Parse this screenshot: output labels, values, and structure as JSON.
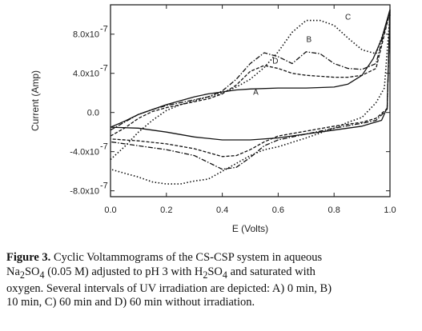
{
  "chart_data": {
    "type": "line",
    "xlabel": "E (Volts)",
    "ylabel": "Current (Amp)",
    "xlim": [
      0.0,
      1.0
    ],
    "ylim": [
      -8.6e-07,
      1.1e-06
    ],
    "x_ticks": [
      0.0,
      0.2,
      0.4,
      0.6,
      0.8,
      1.0
    ],
    "x_tick_labels": [
      "0.0",
      "0.2",
      "0.4",
      "0.6",
      "0.8",
      "1.0"
    ],
    "y_ticks": [
      8e-07,
      4e-07,
      0.0,
      -4e-07,
      -8e-07
    ],
    "y_tick_mantissa": [
      "8.0x10",
      "4.0x10",
      "0.0",
      "-4.0x10",
      "-8.0x10"
    ],
    "y_tick_exponent": [
      "-7",
      "-7",
      "",
      "-7",
      "-7"
    ],
    "grid": false,
    "series": [
      {
        "name": "A",
        "style": "solid",
        "forward": [
          [
            0.0,
            -1.5e-07
          ],
          [
            0.05,
            -9e-08
          ],
          [
            0.1,
            -2e-08
          ],
          [
            0.15,
            3e-08
          ],
          [
            0.2,
            8e-08
          ],
          [
            0.25,
            1.2e-07
          ],
          [
            0.3,
            1.6e-07
          ],
          [
            0.35,
            1.9e-07
          ],
          [
            0.4,
            2.1e-07
          ],
          [
            0.45,
            2.3e-07
          ],
          [
            0.5,
            2.4e-07
          ],
          [
            0.6,
            2.5e-07
          ],
          [
            0.7,
            2.5e-07
          ],
          [
            0.8,
            2.6e-07
          ],
          [
            0.85,
            2.9e-07
          ],
          [
            0.9,
            3.8e-07
          ],
          [
            0.94,
            5.5e-07
          ],
          [
            0.97,
            7.5e-07
          ],
          [
            1.0,
            1.05e-06
          ]
        ],
        "reverse": [
          [
            1.0,
            1.05e-06
          ],
          [
            0.99,
            5e-08
          ],
          [
            0.97,
            -8e-08
          ],
          [
            0.9,
            -1.4e-07
          ],
          [
            0.8,
            -1.8e-07
          ],
          [
            0.7,
            -2.2e-07
          ],
          [
            0.6,
            -2.6e-07
          ],
          [
            0.5,
            -2.8e-07
          ],
          [
            0.4,
            -2.8e-07
          ],
          [
            0.3,
            -2.5e-07
          ],
          [
            0.2,
            -2e-07
          ],
          [
            0.1,
            -1.6e-07
          ],
          [
            0.0,
            -1.5e-07
          ]
        ]
      },
      {
        "name": "B",
        "style": "dashdot",
        "forward": [
          [
            0.0,
            -1.8e-07
          ],
          [
            0.05,
            -1e-07
          ],
          [
            0.1,
            -2e-08
          ],
          [
            0.15,
            3e-08
          ],
          [
            0.2,
            7e-08
          ],
          [
            0.25,
            1e-07
          ],
          [
            0.3,
            1.3e-07
          ],
          [
            0.35,
            1.6e-07
          ],
          [
            0.4,
            2.2e-07
          ],
          [
            0.45,
            3.4e-07
          ],
          [
            0.5,
            5e-07
          ],
          [
            0.55,
            6.1e-07
          ],
          [
            0.6,
            5.7e-07
          ],
          [
            0.65,
            5e-07
          ],
          [
            0.7,
            6.2e-07
          ],
          [
            0.75,
            6e-07
          ],
          [
            0.8,
            5e-07
          ],
          [
            0.85,
            4.5e-07
          ],
          [
            0.9,
            4.4e-07
          ],
          [
            0.95,
            5e-07
          ],
          [
            1.0,
            1.05e-06
          ]
        ],
        "reverse": [
          [
            1.0,
            1.05e-06
          ],
          [
            0.99,
            3e-08
          ],
          [
            0.95,
            -8e-08
          ],
          [
            0.9,
            -1.1e-07
          ],
          [
            0.8,
            -1.6e-07
          ],
          [
            0.7,
            -2.2e-07
          ],
          [
            0.6,
            -2.8e-07
          ],
          [
            0.55,
            -3.4e-07
          ],
          [
            0.5,
            -4.6e-07
          ],
          [
            0.45,
            -5.6e-07
          ],
          [
            0.4,
            -5.8e-07
          ],
          [
            0.35,
            -5.1e-07
          ],
          [
            0.3,
            -4.4e-07
          ],
          [
            0.2,
            -3.8e-07
          ],
          [
            0.1,
            -3.4e-07
          ],
          [
            0.0,
            -3e-07
          ]
        ]
      },
      {
        "name": "C",
        "style": "dotted",
        "forward": [
          [
            0.0,
            -4.8e-07
          ],
          [
            0.05,
            -3.5e-07
          ],
          [
            0.1,
            -2e-07
          ],
          [
            0.15,
            -8e-08
          ],
          [
            0.2,
            2e-08
          ],
          [
            0.25,
            8e-08
          ],
          [
            0.3,
            1.2e-07
          ],
          [
            0.35,
            1.6e-07
          ],
          [
            0.4,
            2e-07
          ],
          [
            0.45,
            2.6e-07
          ],
          [
            0.5,
            3.4e-07
          ],
          [
            0.55,
            4.6e-07
          ],
          [
            0.6,
            6.2e-07
          ],
          [
            0.65,
            8.2e-07
          ],
          [
            0.7,
            9.4e-07
          ],
          [
            0.75,
            9.4e-07
          ],
          [
            0.8,
            8.9e-07
          ],
          [
            0.85,
            7.6e-07
          ],
          [
            0.9,
            6.4e-07
          ],
          [
            0.95,
            6e-07
          ],
          [
            1.0,
            1e-06
          ]
        ],
        "reverse": [
          [
            1.0,
            1e-06
          ],
          [
            0.98,
            2.5e-07
          ],
          [
            0.95,
            1e-07
          ],
          [
            0.9,
            -5e-08
          ],
          [
            0.85,
            -1e-07
          ],
          [
            0.8,
            -1.6e-07
          ],
          [
            0.7,
            -2.6e-07
          ],
          [
            0.6,
            -3.5e-07
          ],
          [
            0.55,
            -3.8e-07
          ],
          [
            0.5,
            -4.4e-07
          ],
          [
            0.45,
            -5.2e-07
          ],
          [
            0.4,
            -6e-07
          ],
          [
            0.35,
            -6.8e-07
          ],
          [
            0.3,
            -7e-07
          ],
          [
            0.25,
            -7.3e-07
          ],
          [
            0.2,
            -7.3e-07
          ],
          [
            0.15,
            -7.1e-07
          ],
          [
            0.1,
            -6.6e-07
          ],
          [
            0.05,
            -6.2e-07
          ],
          [
            0.0,
            -5.8e-07
          ]
        ]
      },
      {
        "name": "D",
        "style": "dashed",
        "forward": [
          [
            0.0,
            -2.4e-07
          ],
          [
            0.05,
            -1.6e-07
          ],
          [
            0.1,
            -6e-08
          ],
          [
            0.15,
            1e-08
          ],
          [
            0.2,
            5e-08
          ],
          [
            0.25,
            8e-08
          ],
          [
            0.3,
            1.1e-07
          ],
          [
            0.35,
            1.4e-07
          ],
          [
            0.4,
            1.9e-07
          ],
          [
            0.45,
            2.8e-07
          ],
          [
            0.5,
            4.2e-07
          ],
          [
            0.55,
            4.8e-07
          ],
          [
            0.6,
            4.5e-07
          ],
          [
            0.65,
            4e-07
          ],
          [
            0.7,
            3.8e-07
          ],
          [
            0.75,
            3.7e-07
          ],
          [
            0.8,
            3.6e-07
          ],
          [
            0.85,
            3.6e-07
          ],
          [
            0.9,
            3.8e-07
          ],
          [
            0.95,
            4.5e-07
          ],
          [
            1.0,
            1.03e-06
          ]
        ],
        "reverse": [
          [
            1.0,
            1.03e-06
          ],
          [
            0.99,
            4e-08
          ],
          [
            0.95,
            -6e-08
          ],
          [
            0.9,
            -1e-07
          ],
          [
            0.8,
            -1.4e-07
          ],
          [
            0.7,
            -1.9e-07
          ],
          [
            0.6,
            -2.4e-07
          ],
          [
            0.55,
            -3e-07
          ],
          [
            0.5,
            -3.8e-07
          ],
          [
            0.45,
            -4.4e-07
          ],
          [
            0.4,
            -4.5e-07
          ],
          [
            0.35,
            -4.1e-07
          ],
          [
            0.3,
            -3.7e-07
          ],
          [
            0.2,
            -3.2e-07
          ],
          [
            0.1,
            -2.9e-07
          ],
          [
            0.0,
            -2.7e-07
          ]
        ]
      }
    ],
    "annotations": [
      {
        "text": "A",
        "x": 0.52,
        "y": 1.8e-07
      },
      {
        "text": "B",
        "x": 0.71,
        "y": 7.2e-07
      },
      {
        "text": "C",
        "x": 0.85,
        "y": 9.5e-07
      },
      {
        "text": "D",
        "x": 0.59,
        "y": 5e-07
      }
    ]
  },
  "caption": {
    "label": "Figure 3.",
    "line1": "Cyclic Voltammograms of the CS-CSP system in aqueous",
    "line2_a": "Na",
    "line2_sub1": "2",
    "line2_b": "SO",
    "line2_sub2": "4",
    "line2_c": " (0.05 M) adjusted to pH 3 with H",
    "line2_sub3": "2",
    "line2_d": "SO",
    "line2_sub4": "4",
    "line2_e": " and saturated with",
    "line3": "oxygen. Several intervals of UV irradiation are depicted: A) 0 min, B)",
    "line4": "10 min, C) 60 min and D) 60 min without irradiation."
  }
}
